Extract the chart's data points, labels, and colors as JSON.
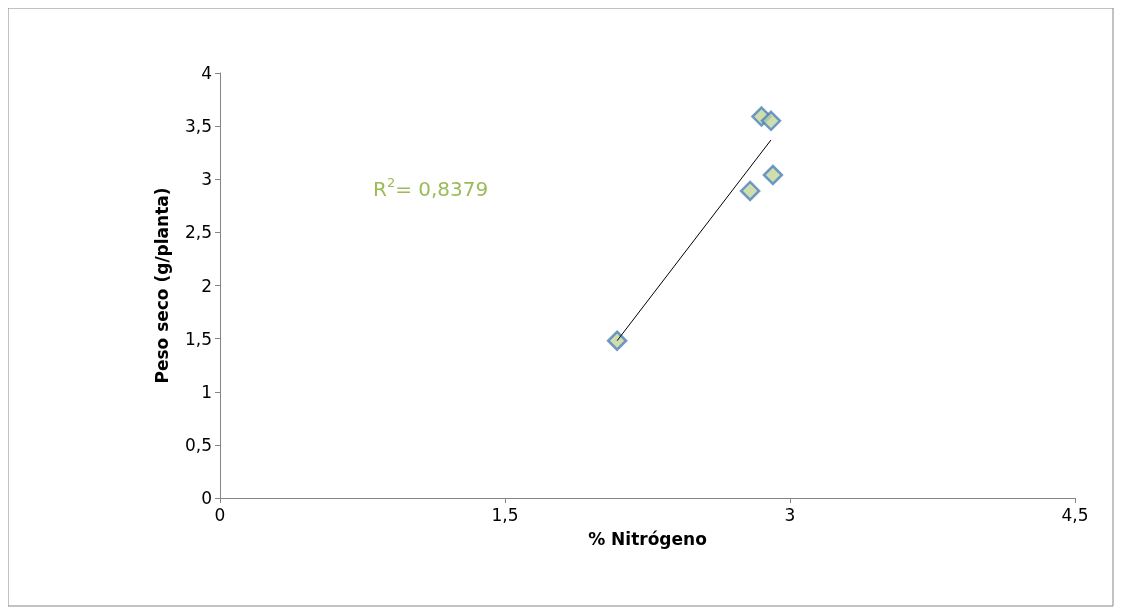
{
  "chart_data": {
    "type": "scatter",
    "xlabel": "% Nitrógeno",
    "ylabel": "Peso seco (g/planta)",
    "annotations": [
      "R$^{2}$= 0,8379"
    ],
    "xlim": [
      0,
      4.5
    ],
    "xticks": [
      0,
      {
        "value": 1.5,
        "label": "1,5"
      },
      3,
      {
        "value": 4.5,
        "label": "4,5"
      }
    ],
    "ylim": [
      0,
      4
    ],
    "yticks": [
      0,
      {
        "value": 0.5,
        "label": "0,5"
      },
      1,
      {
        "value": 1.5,
        "label": "1,5"
      },
      2,
      {
        "value": 2.5,
        "label": "2,5"
      },
      3,
      {
        "value": 3.5,
        "label": "3,5"
      },
      4
    ],
    "grid": false,
    "marker": "diamond",
    "series": [
      {
        "color": "#c3d69b",
        "x": [
          2.09,
          2.79,
          2.85,
          2.9,
          2.91
        ],
        "values": [
          1.48,
          2.89,
          3.59,
          3.55,
          3.04
        ]
      },
      {
        "type": "line",
        "color": "#000000",
        "marker": "none",
        "x": [
          2.09,
          2.9
        ],
        "values": [
          1.48,
          3.37
        ]
      }
    ]
  }
}
